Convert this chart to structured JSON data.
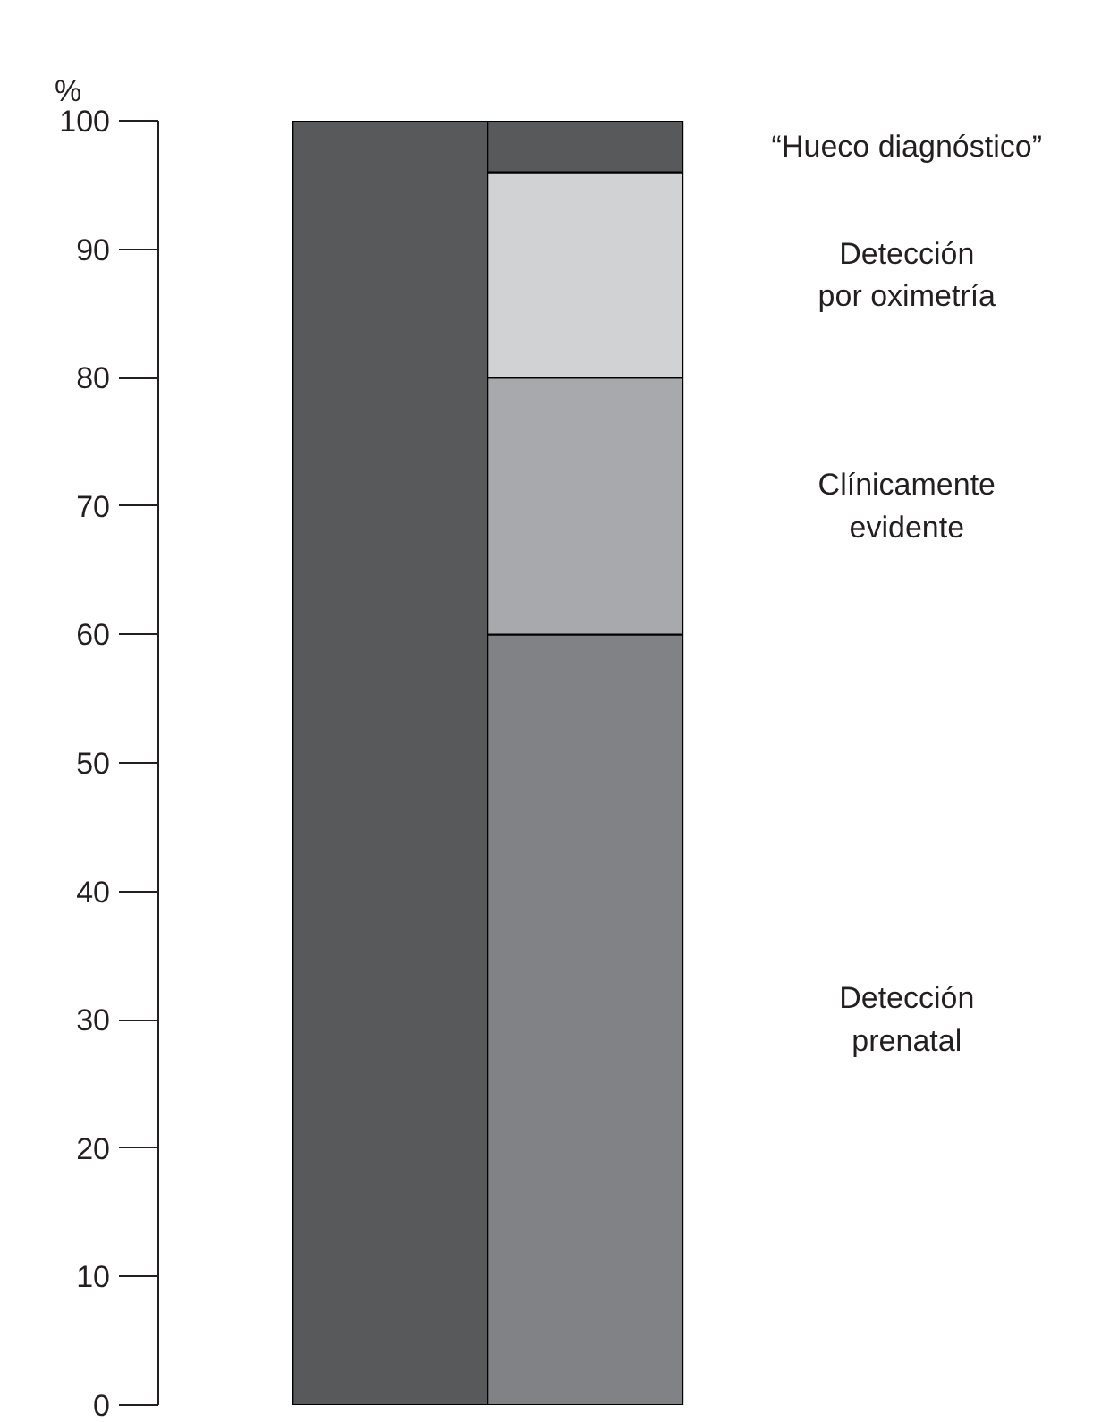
{
  "chart_data": {
    "type": "bar",
    "stacked": true,
    "ylabel": "%",
    "categories": [
      null,
      null
    ],
    "series": [
      {
        "color": "#58595b",
        "values": [
          100,
          0
        ]
      },
      {
        "name": "Detección\nprenatal",
        "color": "#808285",
        "values": [
          0,
          60
        ]
      },
      {
        "name": "Clínicamente\nevidente",
        "color": "#a7a9ac",
        "values": [
          0,
          20
        ]
      },
      {
        "name": "Detección\npor oximetría",
        "color": "#d1d2d4",
        "values": [
          0,
          16
        ]
      },
      {
        "name": "“Hueco diagnóstico”",
        "color": "#58595b",
        "values": [
          0,
          4
        ]
      }
    ],
    "ylim": [
      0,
      100
    ],
    "yticks": [
      0,
      10,
      20,
      30,
      40,
      50,
      60,
      70,
      80,
      90,
      100
    ],
    "grid": false,
    "legend": false,
    "tick_labels": "y"
  }
}
